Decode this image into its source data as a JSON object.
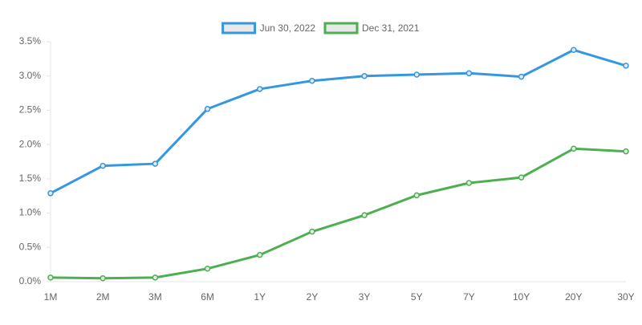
{
  "chart_data": {
    "type": "line",
    "categories": [
      "1M",
      "2M",
      "3M",
      "6M",
      "1Y",
      "2Y",
      "3Y",
      "5Y",
      "7Y",
      "10Y",
      "20Y",
      "30Y"
    ],
    "series": [
      {
        "name": "Jun 30, 2022",
        "color": "#3497e0",
        "values": [
          1.29,
          1.69,
          1.72,
          2.52,
          2.81,
          2.93,
          3.0,
          3.02,
          3.04,
          2.99,
          3.38,
          3.15
        ]
      },
      {
        "name": "Dec 31, 2021",
        "color": "#4caf50",
        "values": [
          0.06,
          0.05,
          0.06,
          0.19,
          0.39,
          0.73,
          0.97,
          1.26,
          1.44,
          1.52,
          1.94,
          1.9
        ]
      }
    ],
    "ylim": [
      0,
      3.5
    ],
    "yticks": [
      {
        "value": 0,
        "label": "0.0%"
      },
      {
        "value": 0.5,
        "label": "0.5%"
      },
      {
        "value": 1,
        "label": "1.0%"
      },
      {
        "value": 1.5,
        "label": "1.5%"
      },
      {
        "value": 2,
        "label": "2.0%"
      },
      {
        "value": 2.5,
        "label": "2.5%"
      },
      {
        "value": 3,
        "label": "3.0%"
      },
      {
        "value": 3.5,
        "label": "3.5%"
      }
    ],
    "grid": false,
    "legend": "top"
  }
}
